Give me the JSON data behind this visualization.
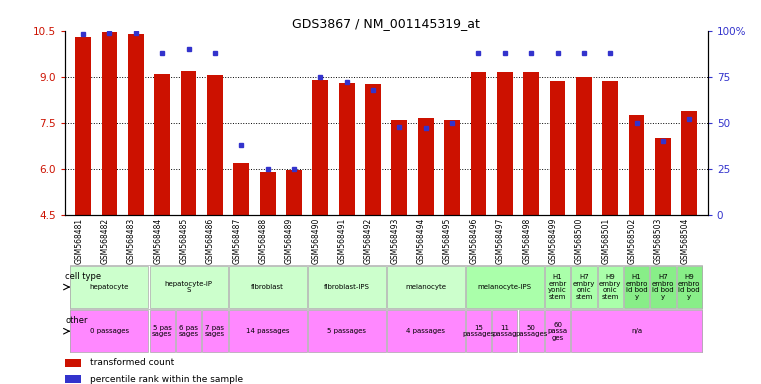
{
  "title": "GDS3867 / NM_001145319_at",
  "samples": [
    "GSM568481",
    "GSM568482",
    "GSM568483",
    "GSM568484",
    "GSM568485",
    "GSM568486",
    "GSM568487",
    "GSM568488",
    "GSM568489",
    "GSM568490",
    "GSM568491",
    "GSM568492",
    "GSM568493",
    "GSM568494",
    "GSM568495",
    "GSM568496",
    "GSM568497",
    "GSM568498",
    "GSM568499",
    "GSM568500",
    "GSM568501",
    "GSM568502",
    "GSM568503",
    "GSM568504"
  ],
  "bar_values": [
    10.3,
    10.45,
    10.4,
    9.1,
    9.2,
    9.05,
    6.2,
    5.9,
    5.95,
    8.9,
    8.8,
    8.75,
    7.6,
    7.65,
    7.6,
    9.15,
    9.15,
    9.15,
    8.85,
    9.0,
    8.85,
    7.75,
    7.0,
    7.9
  ],
  "percentile_values": [
    98,
    99,
    99,
    88,
    90,
    88,
    38,
    25,
    25,
    75,
    72,
    68,
    48,
    47,
    50,
    88,
    88,
    88,
    88,
    88,
    88,
    50,
    40,
    52
  ],
  "ylim_left": [
    4.5,
    10.5
  ],
  "yticks_left": [
    4.5,
    6.0,
    7.5,
    9.0,
    10.5
  ],
  "ylim_right": [
    0,
    100
  ],
  "yticks_right": [
    0,
    25,
    50,
    75,
    100
  ],
  "ytick_right_labels": [
    "0",
    "25",
    "50",
    "75",
    "100%"
  ],
  "bar_color": "#cc1100",
  "dot_color": "#3333cc",
  "cell_type_groups": [
    {
      "label": "hepatocyte",
      "start": 0,
      "end": 2,
      "color": "#ccffcc"
    },
    {
      "label": "hepatocyte-iP\nS",
      "start": 3,
      "end": 5,
      "color": "#ccffcc"
    },
    {
      "label": "fibroblast",
      "start": 6,
      "end": 8,
      "color": "#ccffcc"
    },
    {
      "label": "fibroblast-IPS",
      "start": 9,
      "end": 11,
      "color": "#ccffcc"
    },
    {
      "label": "melanocyte",
      "start": 12,
      "end": 14,
      "color": "#ccffcc"
    },
    {
      "label": "melanocyte-IPS",
      "start": 15,
      "end": 17,
      "color": "#aaffaa"
    },
    {
      "label": "H1\nembr\nyonic\nstem",
      "start": 18,
      "end": 18,
      "color": "#aaffaa"
    },
    {
      "label": "H7\nembry\nonic\nstem",
      "start": 19,
      "end": 19,
      "color": "#aaffaa"
    },
    {
      "label": "H9\nembry\nonic\nstem",
      "start": 20,
      "end": 20,
      "color": "#aaffaa"
    },
    {
      "label": "H1\nembro\nid bod\ny",
      "start": 21,
      "end": 21,
      "color": "#88ee88"
    },
    {
      "label": "H7\nembro\nid bod\ny",
      "start": 22,
      "end": 22,
      "color": "#88ee88"
    },
    {
      "label": "H9\nembro\nid bod\ny",
      "start": 23,
      "end": 23,
      "color": "#88ee88"
    }
  ],
  "other_groups": [
    {
      "label": "0 passages",
      "start": 0,
      "end": 2,
      "color": "#ff88ff"
    },
    {
      "label": "5 pas\nsages",
      "start": 3,
      "end": 3,
      "color": "#ff88ff"
    },
    {
      "label": "6 pas\nsages",
      "start": 4,
      "end": 4,
      "color": "#ff88ff"
    },
    {
      "label": "7 pas\nsages",
      "start": 5,
      "end": 5,
      "color": "#ff88ff"
    },
    {
      "label": "14 passages",
      "start": 6,
      "end": 8,
      "color": "#ff88ff"
    },
    {
      "label": "5 passages",
      "start": 9,
      "end": 11,
      "color": "#ff88ff"
    },
    {
      "label": "4 passages",
      "start": 12,
      "end": 14,
      "color": "#ff88ff"
    },
    {
      "label": "15\npassages",
      "start": 15,
      "end": 15,
      "color": "#ff88ff"
    },
    {
      "label": "11\npassag",
      "start": 16,
      "end": 16,
      "color": "#ff88ff"
    },
    {
      "label": "50\npassages",
      "start": 17,
      "end": 17,
      "color": "#ff88ff"
    },
    {
      "label": "60\npassa\nges",
      "start": 18,
      "end": 18,
      "color": "#ff88ff"
    },
    {
      "label": "n/a",
      "start": 19,
      "end": 23,
      "color": "#ff88ff"
    }
  ],
  "background_color": "#ffffff",
  "grid_color": "#555555",
  "legend_items": [
    {
      "color": "#cc1100",
      "label": "transformed count"
    },
    {
      "color": "#3333cc",
      "label": "percentile rank within the sample"
    }
  ]
}
